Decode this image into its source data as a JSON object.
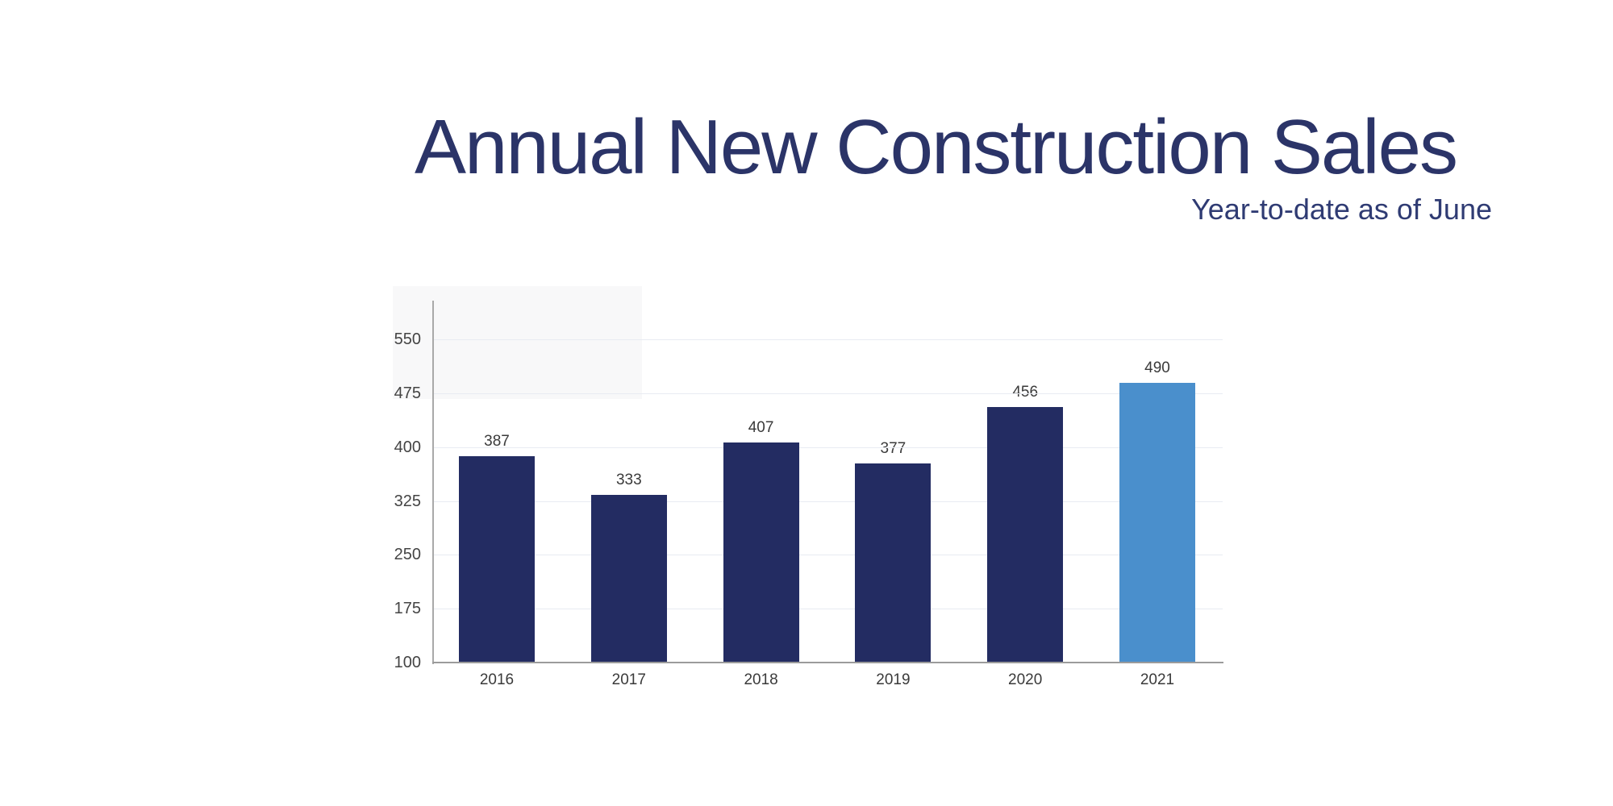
{
  "title": "Annual New Construction Sales",
  "subtitle": "Year-to-date as of June",
  "colors": {
    "title_navy": "#2B3468",
    "subtitle_navy": "#2F3B73",
    "bar_navy": "#232C62",
    "bar_highlight_blue": "#4A8FCC",
    "gridline_gray": "#E8EBF2",
    "axis_gray": "#A9A9A9",
    "label_gray": "#3A3A3A"
  },
  "chart_data": {
    "type": "bar",
    "title": "Annual New Construction Sales",
    "subtitle": "Year-to-date as of June",
    "categories": [
      "2016",
      "2017",
      "2018",
      "2019",
      "2020",
      "2021"
    ],
    "values": [
      387,
      333,
      407,
      377,
      456,
      490
    ],
    "data_labels": [
      "387",
      "333",
      "407",
      "377",
      "456",
      "490"
    ],
    "highlight_index": 5,
    "xlabel": "",
    "ylabel": "",
    "ylim": [
      100,
      550
    ],
    "ytick_step": 75,
    "ytick_labels": [
      "100",
      "175",
      "250",
      "325",
      "400",
      "475",
      "550"
    ],
    "grid": true,
    "legend": "none"
  }
}
